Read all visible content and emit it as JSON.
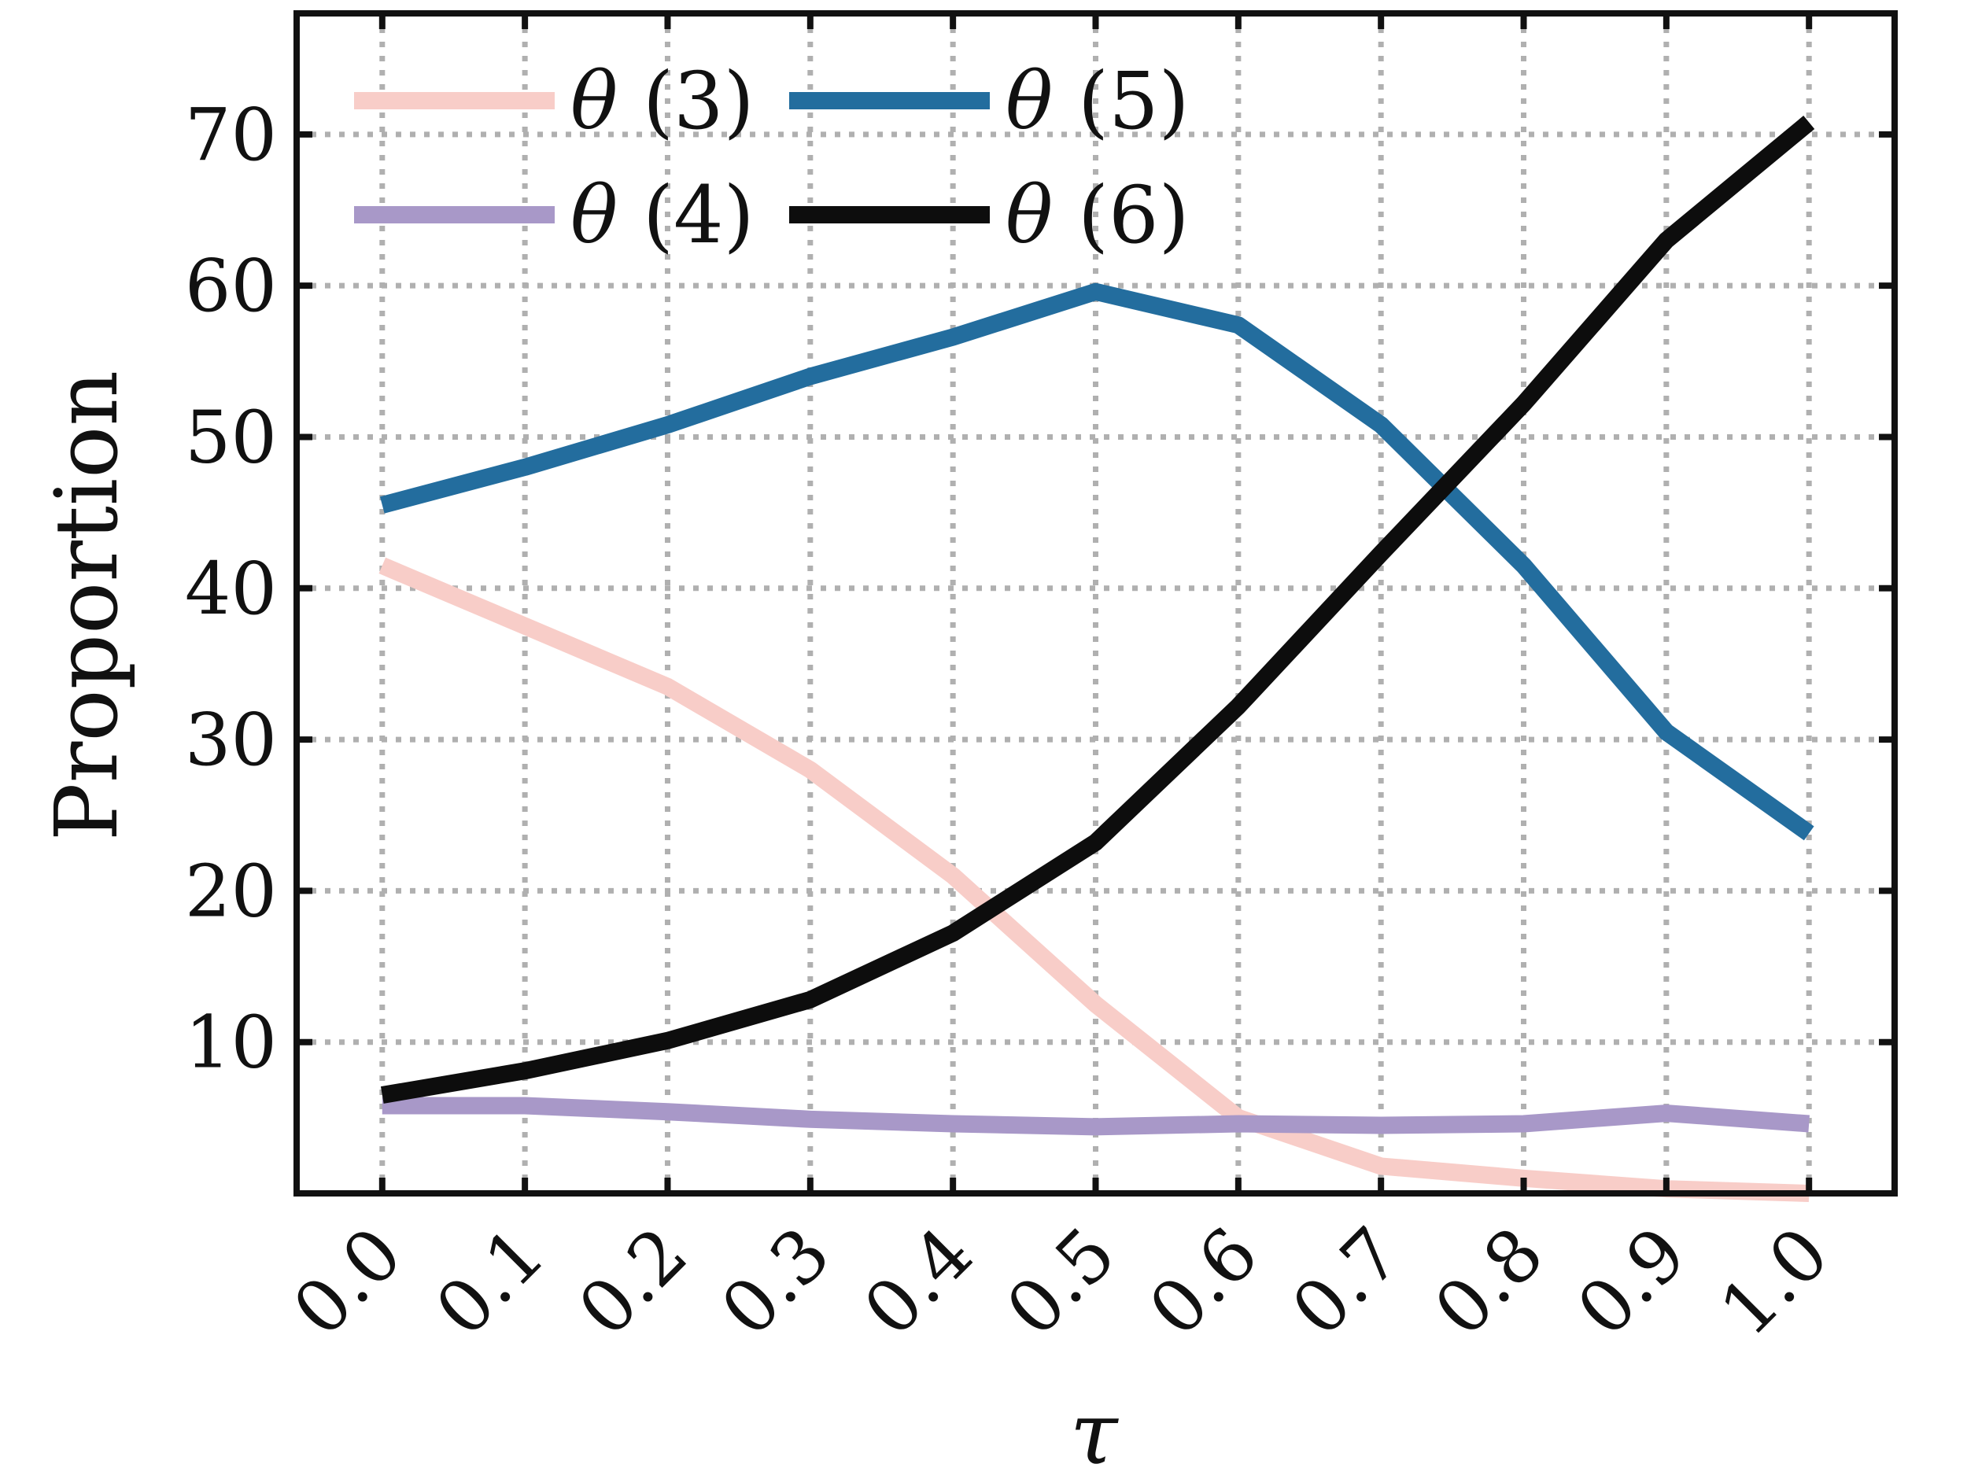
{
  "chart_data": {
    "type": "line",
    "xlabel": "τ",
    "ylabel": "Proportion",
    "x": [
      0.0,
      0.1,
      0.2,
      0.3,
      0.4,
      0.5,
      0.6,
      0.7,
      0.8,
      0.9,
      1.0
    ],
    "x_tick_labels": [
      "0.0",
      "0.1",
      "0.2",
      "0.3",
      "0.4",
      "0.5",
      "0.6",
      "0.7",
      "0.8",
      "0.9",
      "1.0"
    ],
    "y_ticks": [
      10,
      20,
      30,
      40,
      50,
      60,
      70
    ],
    "y_tick_labels": [
      "10",
      "20",
      "30",
      "40",
      "50",
      "60",
      "70"
    ],
    "xlim": [
      -0.06,
      1.06
    ],
    "ylim": [
      0,
      78
    ],
    "grid": true,
    "legend_position": "top-left",
    "series": [
      {
        "name": "θ (3)",
        "var": "θ",
        "arg": "(3)",
        "color": "#f8cdc8",
        "values": [
          41.5,
          37.5,
          33.5,
          28,
          21,
          12.5,
          5,
          1.8,
          1,
          0.3,
          0
        ]
      },
      {
        "name": "θ (4)",
        "var": "θ",
        "arg": "(4)",
        "color": "#a898c8",
        "values": [
          5.8,
          5.8,
          5.4,
          4.9,
          4.6,
          4.4,
          4.6,
          4.5,
          4.6,
          5.3,
          4.6
        ]
      },
      {
        "name": "θ (5)",
        "var": "θ",
        "arg": "(5)",
        "color": "#236d9e",
        "values": [
          45.5,
          48,
          50.8,
          54,
          56.6,
          59.6,
          57.4,
          50.8,
          41.5,
          30.5,
          23.8
        ]
      },
      {
        "name": "θ (6)",
        "var": "θ",
        "arg": "(6)",
        "color": "#0d0d0d",
        "values": [
          6.5,
          8.1,
          10.1,
          12.8,
          17.2,
          23.2,
          32.2,
          42.3,
          52.2,
          63,
          70.8
        ]
      }
    ]
  }
}
